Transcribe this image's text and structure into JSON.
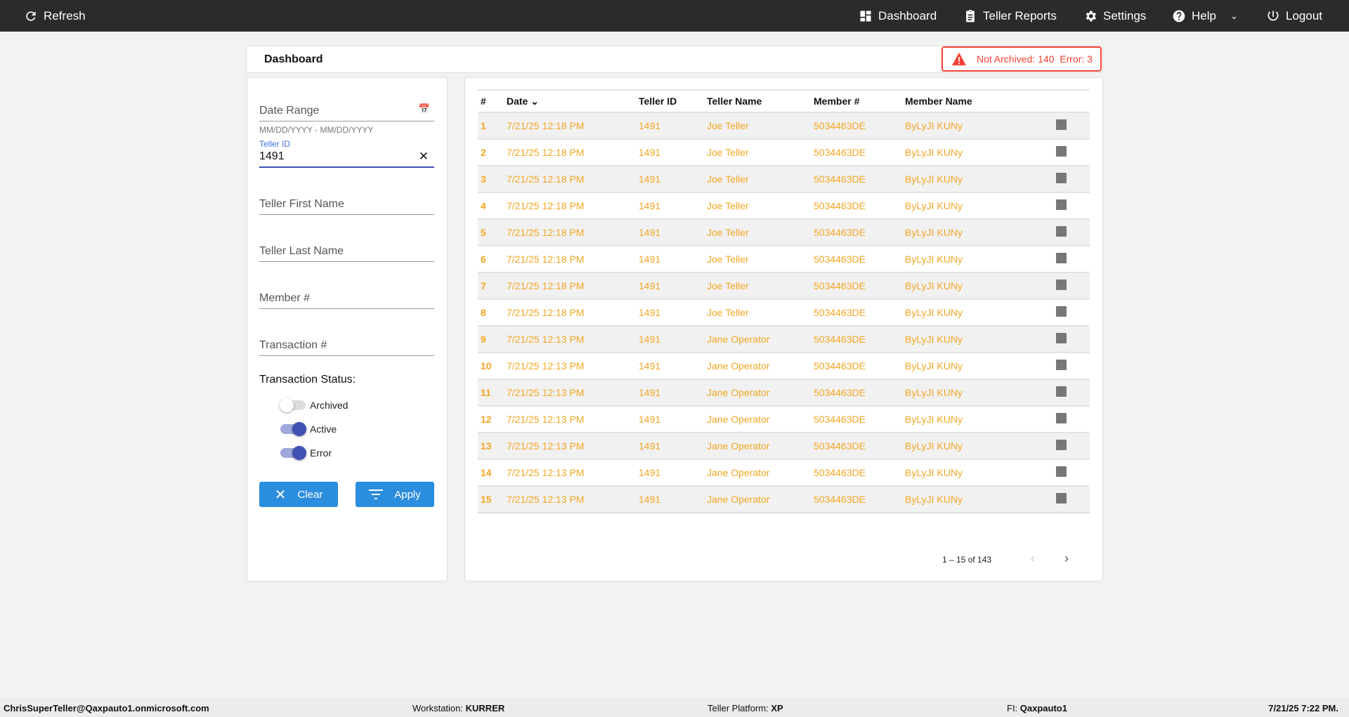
{
  "topbar": {
    "refresh": "Refresh",
    "dashboard": "Dashboard",
    "teller_reports": "Teller Reports",
    "settings": "Settings",
    "help": "Help",
    "logout": "Logout"
  },
  "header": {
    "title": "Dashboard",
    "alert": "Not Archived: 140  Error: 3"
  },
  "filters": {
    "date_range": "Date Range",
    "date_hint": "MM/DD/YYYY - MM/DD/YYYY",
    "teller_id_label": "Teller ID",
    "teller_id_value": "1491",
    "teller_first_name": "Teller First Name",
    "teller_last_name": "Teller Last Name",
    "member": "Member #",
    "transaction": "Transaction #",
    "status_label": "Transaction Status:",
    "toggles": [
      {
        "label": "Archived",
        "on": false
      },
      {
        "label": "Active",
        "on": true
      },
      {
        "label": "Error",
        "on": true
      }
    ],
    "clear": "Clear",
    "apply": "Apply"
  },
  "table": {
    "headers": [
      "#",
      "Date",
      "Teller ID",
      "Teller Name",
      "Member #",
      "Member Name"
    ],
    "rows": [
      [
        "1",
        "7/21/25 12:18 PM",
        "1491",
        "Joe Teller",
        "5034463DE",
        "ByLyJI KUNy"
      ],
      [
        "2",
        "7/21/25 12:18 PM",
        "1491",
        "Joe Teller",
        "5034463DE",
        "ByLyJI KUNy"
      ],
      [
        "3",
        "7/21/25 12:18 PM",
        "1491",
        "Joe Teller",
        "5034463DE",
        "ByLyJI KUNy"
      ],
      [
        "4",
        "7/21/25 12:18 PM",
        "1491",
        "Joe Teller",
        "5034463DE",
        "ByLyJI KUNy"
      ],
      [
        "5",
        "7/21/25 12:18 PM",
        "1491",
        "Joe Teller",
        "5034463DE",
        "ByLyJI KUNy"
      ],
      [
        "6",
        "7/21/25 12:18 PM",
        "1491",
        "Joe Teller",
        "5034463DE",
        "ByLyJI KUNy"
      ],
      [
        "7",
        "7/21/25 12:18 PM",
        "1491",
        "Joe Teller",
        "5034463DE",
        "ByLyJI KUNy"
      ],
      [
        "8",
        "7/21/25 12:18 PM",
        "1491",
        "Joe Teller",
        "5034463DE",
        "ByLyJI KUNy"
      ],
      [
        "9",
        "7/21/25 12:13 PM",
        "1491",
        "Jane Operator",
        "5034463DE",
        "ByLyJI KUNy"
      ],
      [
        "10",
        "7/21/25 12:13 PM",
        "1491",
        "Jane Operator",
        "5034463DE",
        "ByLyJI KUNy"
      ],
      [
        "11",
        "7/21/25 12:13 PM",
        "1491",
        "Jane Operator",
        "5034463DE",
        "ByLyJI KUNy"
      ],
      [
        "12",
        "7/21/25 12:13 PM",
        "1491",
        "Jane Operator",
        "5034463DE",
        "ByLyJI KUNy"
      ],
      [
        "13",
        "7/21/25 12:13 PM",
        "1491",
        "Jane Operator",
        "5034463DE",
        "ByLyJI KUNy"
      ],
      [
        "14",
        "7/21/25 12:13 PM",
        "1491",
        "Jane Operator",
        "5034463DE",
        "ByLyJI KUNy"
      ],
      [
        "15",
        "7/21/25 12:13 PM",
        "1491",
        "Jane Operator",
        "5034463DE",
        "ByLyJI KUNy"
      ]
    ],
    "pagination": "1 – 15 of 143"
  },
  "footer": {
    "email": "ChrisSuperTeller@Qaxpauto1.onmicrosoft.com",
    "workstation_label": "Workstation:",
    "workstation": "KURRER",
    "platform_label": "Teller Platform:",
    "platform": "XP",
    "fi_label": "FI:",
    "fi": "Qaxpauto1",
    "datetime": "7/21/25 7:22 PM."
  },
  "colors": {
    "accent": "#2b8ddd",
    "row_text": "#f5a623",
    "alert": "#f44336",
    "toggle_on": "#3f51b5"
  }
}
